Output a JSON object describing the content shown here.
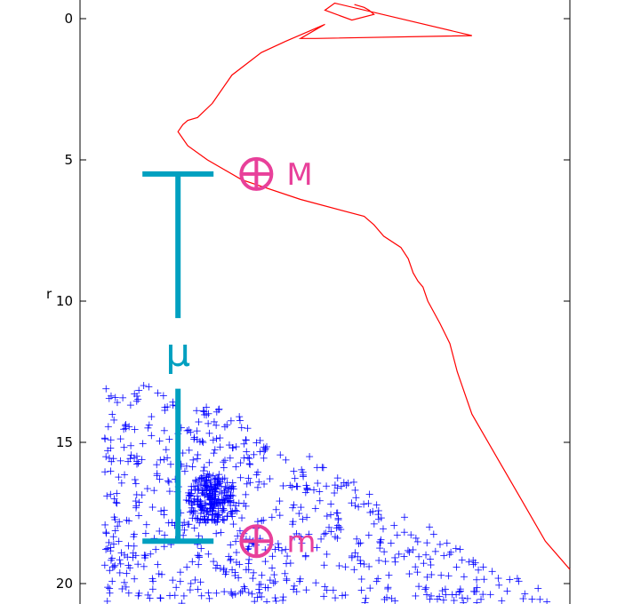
{
  "chart_data": {
    "type": "scatter",
    "title": "",
    "xlabel": "",
    "ylabel": "r",
    "ylim": [
      20.75,
      -0.55
    ],
    "y_inverted": true,
    "xlim": [
      0,
      1
    ],
    "grid": false,
    "y_ticks": [
      {
        "value": 0,
        "label": "0"
      },
      {
        "value": 5,
        "label": "5"
      },
      {
        "value": 10,
        "label": "10"
      },
      {
        "value": 15,
        "label": "15"
      },
      {
        "value": 20,
        "label": "20"
      }
    ],
    "colors": {
      "line": "#ff0000",
      "points": "#0000ff",
      "bracket": "#00a0c0",
      "markers": "#e8409a",
      "axes": "#000000"
    },
    "line_series": {
      "x": [
        0.56,
        0.57,
        0.58,
        0.59,
        0.6,
        0.555,
        0.5,
        0.52,
        0.8,
        0.48,
        0.45,
        0.5,
        0.42,
        0.37,
        0.31,
        0.27,
        0.24,
        0.22,
        0.21,
        0.2,
        0.22,
        0.26,
        0.33,
        0.45,
        0.58,
        0.6,
        0.62,
        0.655,
        0.67,
        0.68,
        0.69,
        0.7,
        0.71,
        0.735,
        0.755,
        0.77,
        0.78,
        0.8,
        0.85,
        0.9,
        0.95,
        1.0
      ],
      "y": [
        -0.5,
        -0.45,
        -0.4,
        -0.3,
        -0.15,
        0.05,
        -0.3,
        -0.55,
        0.6,
        0.7,
        0.7,
        0.2,
        0.8,
        1.2,
        2.0,
        3.0,
        3.5,
        3.6,
        3.75,
        4.0,
        4.5,
        5.0,
        5.7,
        6.4,
        7.0,
        7.3,
        7.7,
        8.1,
        8.5,
        9.0,
        9.3,
        9.5,
        10.0,
        10.8,
        11.5,
        12.5,
        13.0,
        14.0,
        15.5,
        17.0,
        18.5,
        19.5
      ]
    },
    "scatter_series": {
      "marker": "+",
      "count": 900,
      "x_range": [
        0.0,
        1.0
      ],
      "y_range": [
        12.8,
        20.7
      ],
      "dense_region": {
        "x": 0.27,
        "y": 17.0
      }
    },
    "annotations": {
      "upper_marker": {
        "label": "M",
        "symbol": "⊕",
        "x": 0.36,
        "y": 5.5
      },
      "lower_marker": {
        "label": "m",
        "symbol": "⊕",
        "x": 0.36,
        "y": 18.5
      },
      "bracket": {
        "label": "μ",
        "x": 0.2,
        "y_top": 5.5,
        "y_bottom": 18.5
      }
    }
  }
}
